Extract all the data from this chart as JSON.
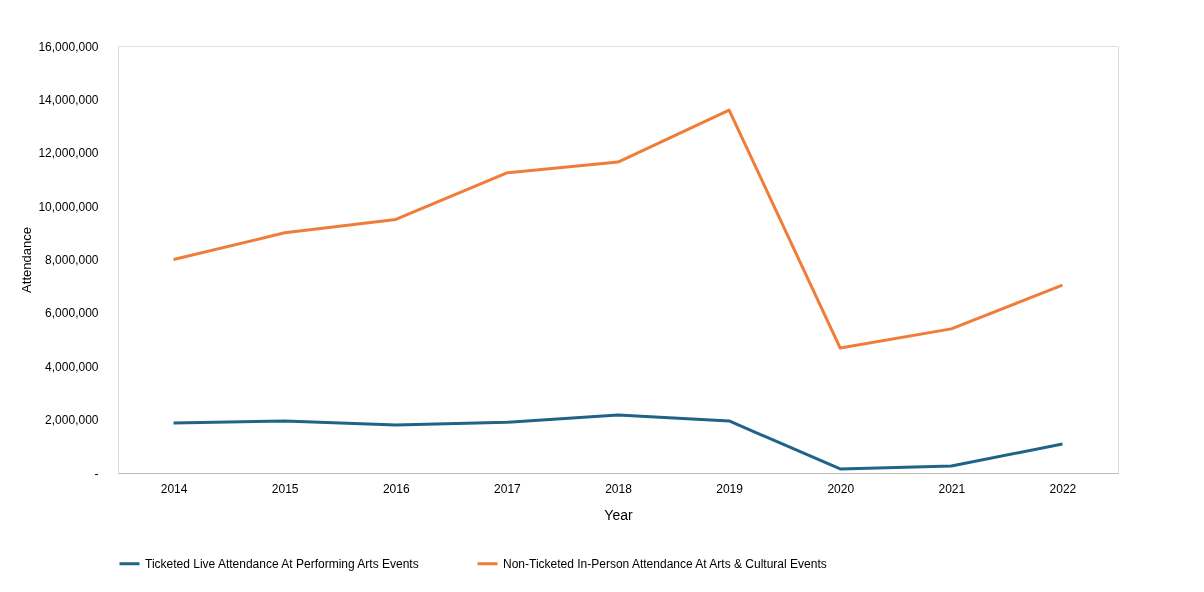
{
  "chart_data": {
    "type": "line",
    "xlabel": "Year",
    "ylabel": "Attendance",
    "categories": [
      "2014",
      "2015",
      "2016",
      "2017",
      "2018",
      "2019",
      "2020",
      "2021",
      "2022"
    ],
    "series": [
      {
        "name": "Ticketed Live Attendance At Performing Arts Events",
        "color": "#1f6388",
        "values": [
          1870000,
          1950000,
          1800000,
          1900000,
          2170000,
          1950000,
          150000,
          260000,
          1090000
        ]
      },
      {
        "name": "Non-Ticketed In-Person Attendance At Arts & Cultural Events",
        "color": "#f07c3a",
        "values": [
          8000000,
          9000000,
          9500000,
          11250000,
          11650000,
          13600000,
          4680000,
          5400000,
          7040000
        ]
      }
    ],
    "ylim": [
      0,
      16000000
    ],
    "yticks": [
      {
        "value": 0,
        "label": "-"
      },
      {
        "value": 2000000,
        "label": "2,000,000"
      },
      {
        "value": 4000000,
        "label": "4,000,000"
      },
      {
        "value": 6000000,
        "label": "6,000,000"
      },
      {
        "value": 8000000,
        "label": "8,000,000"
      },
      {
        "value": 10000000,
        "label": "10,000,000"
      },
      {
        "value": 12000000,
        "label": "12,000,000"
      },
      {
        "value": 14000000,
        "label": "14,000,000"
      },
      {
        "value": 16000000,
        "label": "16,000,000"
      }
    ],
    "grid": false,
    "legend": "bottom",
    "marker": "none",
    "line_style": "solid"
  }
}
